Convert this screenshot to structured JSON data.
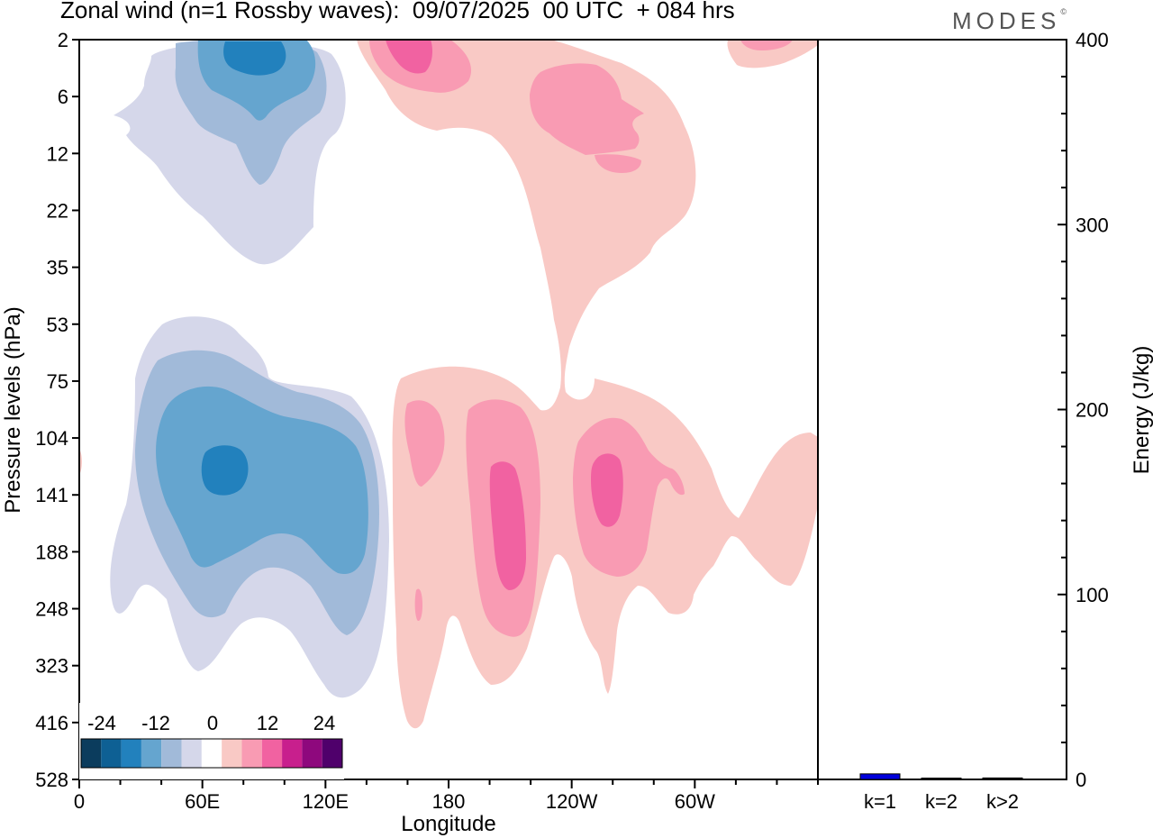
{
  "header": {
    "title": "Zonal wind (n=1 Rossby waves):  09/07/2025  00 UTC  + 084 hrs",
    "brand": "MODES",
    "brand_mark": "©"
  },
  "chart_data": [
    {
      "type": "contour",
      "title": "Zonal wind (n=1 Rossby waves):  09/07/2025  00 UTC  + 084 hrs",
      "xlabel": "Longitude",
      "ylabel": "Pressure levels (hPa)",
      "x_ticks": [
        "0",
        "60E",
        "120E",
        "180",
        "120W",
        "60W"
      ],
      "x_tick_values": [
        0,
        60,
        120,
        180,
        240,
        300
      ],
      "xlim": [
        0,
        360
      ],
      "y_ticks": [
        "2",
        "6",
        "12",
        "22",
        "35",
        "53",
        "75",
        "104",
        "141",
        "188",
        "248",
        "323",
        "416",
        "528"
      ],
      "y_scale": "model levels (evenly spaced)",
      "colorbar": {
        "labels": [
          "-24",
          "-12",
          "0",
          "12",
          "24"
        ],
        "colors": [
          "#0b3c5d",
          "#0e6094",
          "#2281bd",
          "#65a5cf",
          "#a1bad9",
          "#d5d7ea",
          "#ffffff",
          "#f9c9c5",
          "#f99bb3",
          "#f162a1",
          "#c81f8d",
          "#8e087d",
          "#4f006b"
        ]
      },
      "legend_position": "bottom-left inset"
    },
    {
      "type": "bar",
      "ylabel": "Energy (J/kg)",
      "ylim": [
        0,
        400
      ],
      "y_ticks": [
        "0",
        "100",
        "200",
        "300",
        "400"
      ],
      "categories": [
        "k=1",
        "k=2",
        "k>2"
      ],
      "values": [
        3,
        0.5,
        0.8
      ],
      "colors": [
        "#0000dd",
        "#222222",
        "#222222"
      ]
    }
  ]
}
